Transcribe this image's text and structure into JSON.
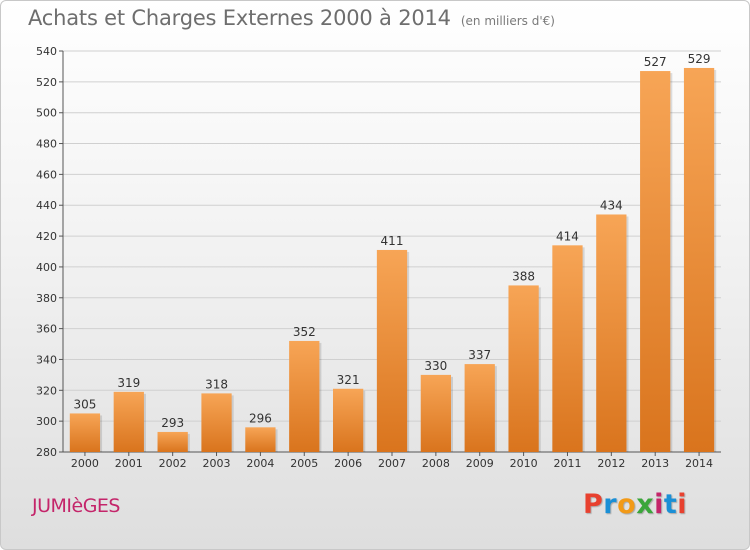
{
  "header": {
    "title": "Achats et Charges Externes 2000 à 2014",
    "unit": "(en milliers d'€)"
  },
  "footer": {
    "commune": "JUMIèGES",
    "logo": "Proxiti",
    "logo_colors": [
      "#e8412f",
      "#1a8fd6",
      "#f29a17",
      "#3aa63a",
      "#c4256a",
      "#1a8fd6",
      "#e8412f"
    ]
  },
  "chart_data": {
    "type": "bar",
    "title": "Achats et Charges Externes 2000 à 2014",
    "subtitle": "(en milliers d'€)",
    "categories": [
      "2000",
      "2001",
      "2002",
      "2003",
      "2004",
      "2005",
      "2006",
      "2007",
      "2008",
      "2009",
      "2010",
      "2011",
      "2012",
      "2013",
      "2014"
    ],
    "values": [
      305,
      319,
      293,
      318,
      296,
      352,
      321,
      411,
      330,
      337,
      388,
      414,
      434,
      527,
      529
    ],
    "ylim": [
      280,
      540
    ],
    "yticks": [
      280,
      300,
      320,
      340,
      360,
      380,
      400,
      420,
      440,
      460,
      480,
      500,
      520,
      540
    ],
    "grid": true,
    "bar_color_top": "#f7a556",
    "bar_color_bottom": "#d9741d",
    "grid_color": "#d0d0d0"
  }
}
